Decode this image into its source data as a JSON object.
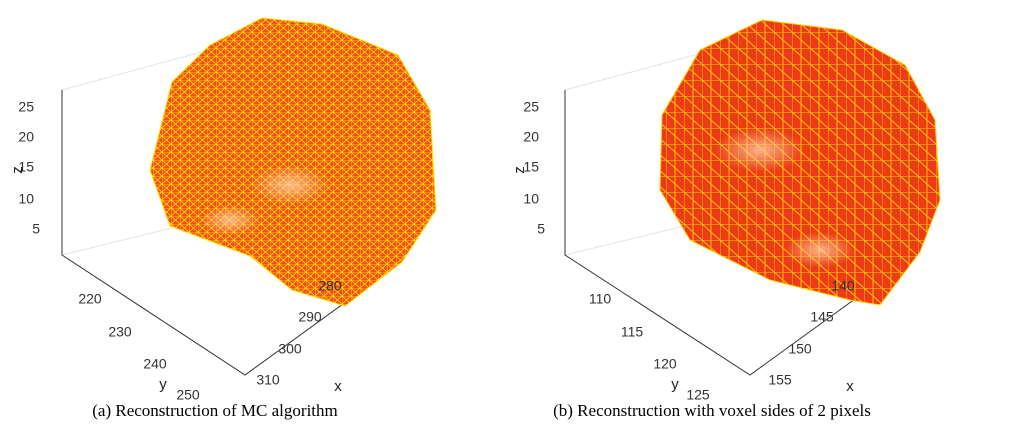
{
  "panels": [
    {
      "caption": "(a) Reconstruction of MC algorithm",
      "z_label": "z",
      "y_label": "y",
      "x_label": "x",
      "z_ticks": [
        "5",
        "10",
        "15",
        "20",
        "25"
      ],
      "y_ticks": [
        "220",
        "230",
        "240",
        "250"
      ],
      "x_ticks": [
        "280",
        "290",
        "300",
        "310"
      ]
    },
    {
      "caption": "(b) Reconstruction with voxel sides of 2 pixels",
      "z_label": "z",
      "y_label": "y",
      "x_label": "x",
      "z_ticks": [
        "5",
        "10",
        "15",
        "20",
        "25"
      ],
      "y_ticks": [
        "110",
        "115",
        "120",
        "125"
      ],
      "x_ticks": [
        "140",
        "145",
        "150",
        "155"
      ]
    }
  ]
}
